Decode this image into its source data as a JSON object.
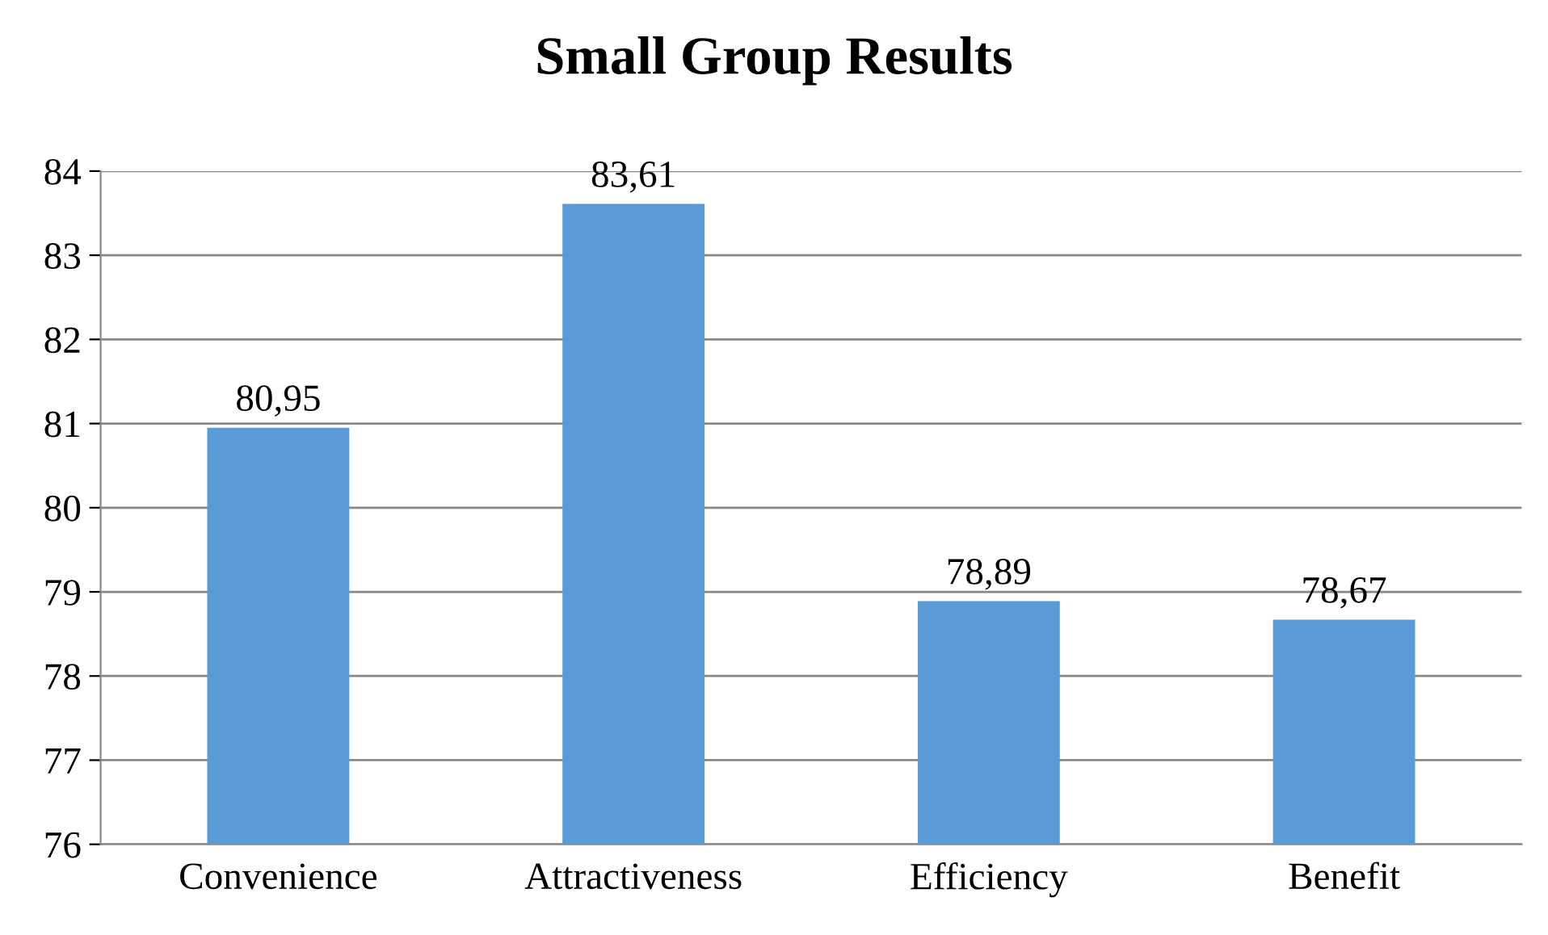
{
  "chart_data": {
    "type": "bar",
    "title": "Small Group Results",
    "categories": [
      "Convenience",
      "Attractiveness",
      "Efficiency",
      "Benefit"
    ],
    "values": [
      80.95,
      83.61,
      78.89,
      78.67
    ],
    "value_labels": [
      "80,95",
      "83,61",
      "78,89",
      "78,67"
    ],
    "color": "#5b9bd5",
    "ylim": [
      76,
      84
    ],
    "yticks": [
      76,
      77,
      78,
      79,
      80,
      81,
      82,
      83,
      84
    ],
    "grid": "y",
    "legend": false
  }
}
